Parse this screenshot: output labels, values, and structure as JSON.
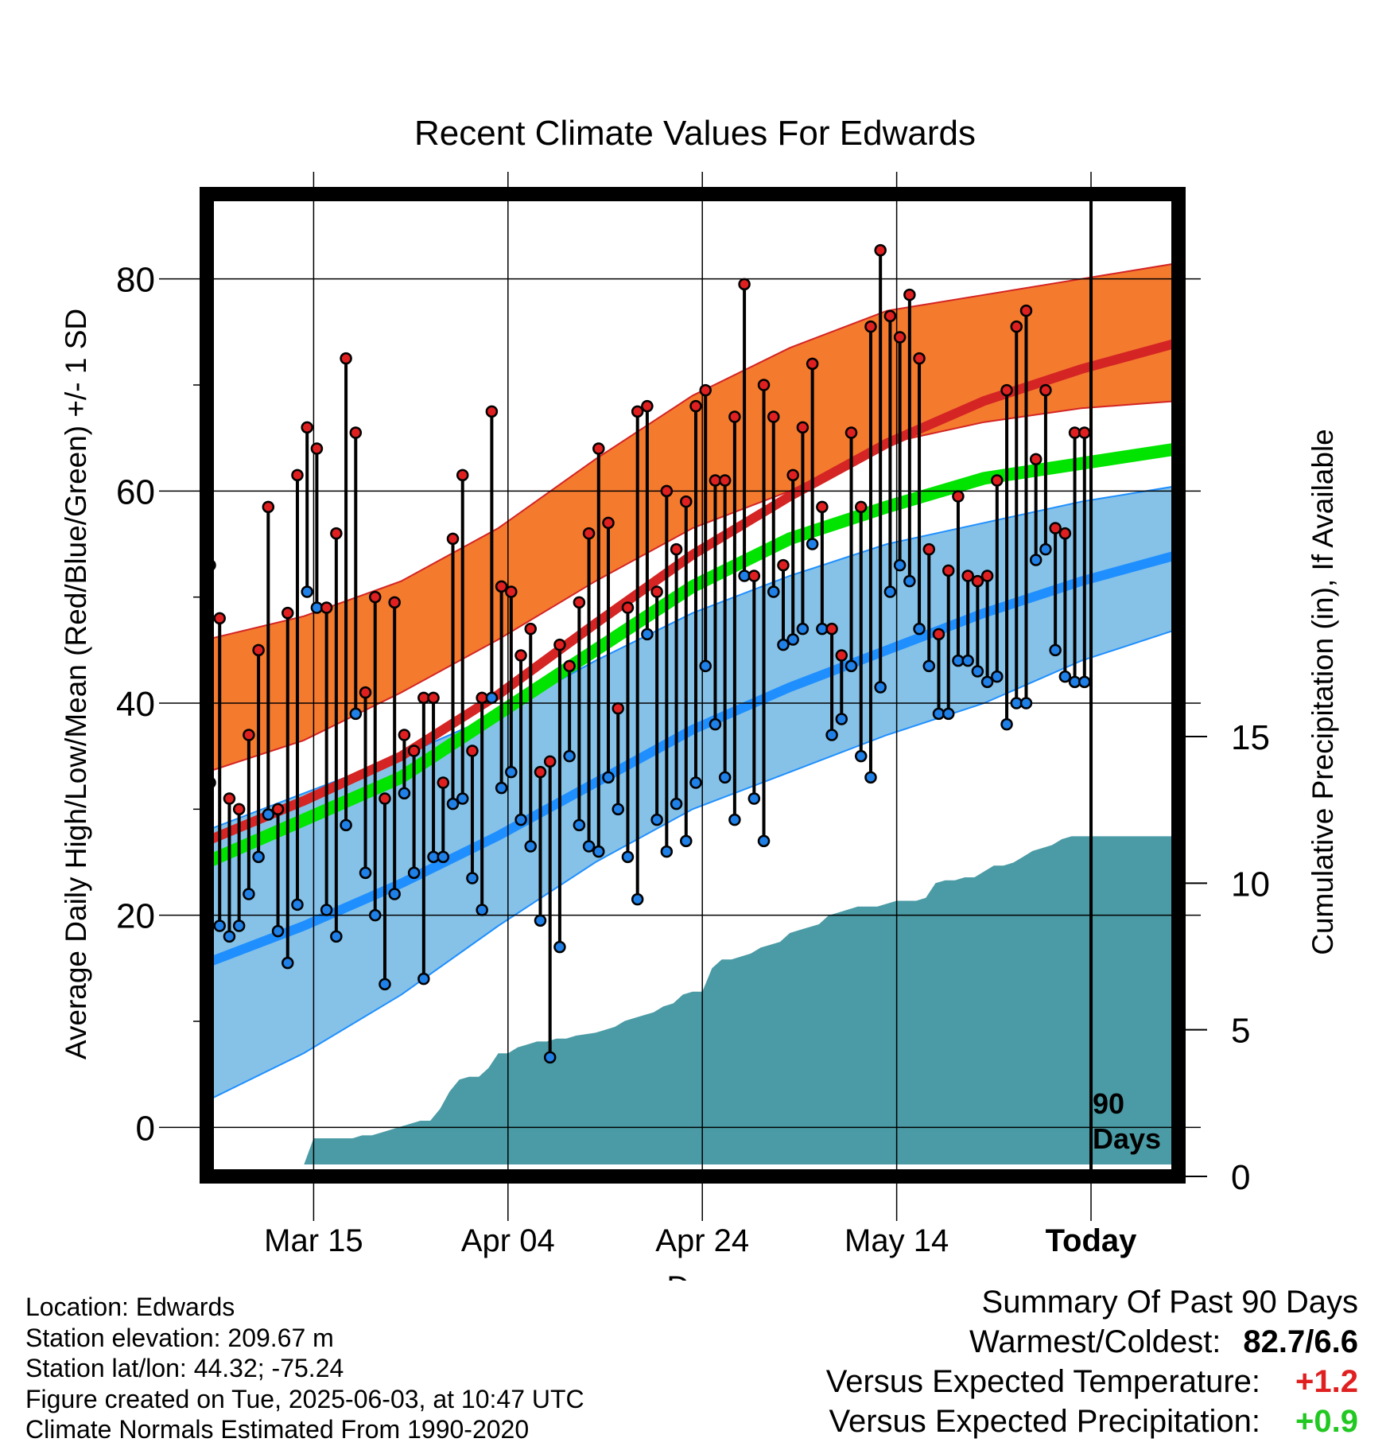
{
  "chart_data": {
    "type": "line",
    "title": "Recent Climate Values For Edwards",
    "xlabel": "Day",
    "ylabel": "Average Daily High/Low/Mean (Red/Blue/Green) +/- 1 SD",
    "y2label": "Cumulative Precipitation (in), If Available",
    "xlim": [
      0,
      100
    ],
    "ylim": [
      -3.5,
      88
    ],
    "y2lim": [
      0,
      33.5
    ],
    "x_ticks": [
      {
        "x": 11,
        "label": "Mar 15"
      },
      {
        "x": 31,
        "label": "Apr 04"
      },
      {
        "x": 51,
        "label": "Apr 24"
      },
      {
        "x": 71,
        "label": "May 14"
      },
      {
        "x": 91,
        "label": "Today"
      }
    ],
    "y_ticks": [
      0,
      20,
      40,
      60,
      80
    ],
    "y2_ticks": [
      0,
      5,
      10,
      15
    ],
    "today_x": 91,
    "today_label": "90 Days",
    "colors": {
      "high_band": "#f47a2e",
      "high_mean": "#d42424",
      "low_band": "#86c2e8",
      "low_mean": "#1f8fff",
      "mean": "#00e400",
      "precip": "#4a9ba5",
      "high_point": "#e02020",
      "low_point": "#1f80e8"
    },
    "normals": {
      "x": [
        0,
        10,
        20,
        30,
        40,
        50,
        60,
        70,
        80,
        90,
        100
      ],
      "high_mean": [
        27,
        30.8,
        35,
        40.8,
        47.5,
        54,
        59.5,
        64.5,
        68.5,
        71.5,
        74
      ],
      "high_upper": [
        46,
        48.2,
        51.5,
        56.5,
        63,
        69,
        73.5,
        77,
        78.5,
        80,
        81.5
      ],
      "high_lower": [
        33.5,
        36.5,
        41,
        46,
        51.5,
        56.5,
        60,
        64.5,
        66.5,
        67.8,
        68.5
      ],
      "mean": [
        25,
        29,
        33,
        39,
        45,
        51,
        55.5,
        58.5,
        61.2,
        62.6,
        64
      ],
      "low_mean": [
        15.5,
        19,
        23,
        27.5,
        32.5,
        37.5,
        41.5,
        45,
        48.5,
        51.5,
        54
      ],
      "low_upper": [
        28,
        31.5,
        35,
        39,
        44,
        48.5,
        52,
        55,
        57,
        59,
        60.5
      ],
      "low_lower": [
        2.5,
        7,
        12.5,
        19,
        25,
        30,
        33.5,
        37,
        40,
        44,
        47
      ]
    },
    "series": [
      {
        "name": "High",
        "x": [
          0,
          1,
          2,
          3,
          4,
          5,
          6,
          7,
          8,
          9,
          10,
          11,
          12,
          13,
          14,
          15,
          16,
          17,
          18,
          19,
          20,
          21,
          22,
          23,
          24,
          25,
          26,
          27,
          28,
          29,
          30,
          31,
          32,
          33,
          34,
          35,
          36,
          37,
          38,
          39,
          40,
          41,
          42,
          43,
          44,
          45,
          46,
          47,
          48,
          49,
          50,
          51,
          52,
          53,
          54,
          55,
          56,
          57,
          58,
          59,
          60,
          61,
          62,
          63,
          64,
          65,
          66,
          67,
          68,
          69,
          70,
          71,
          72,
          73,
          74,
          75,
          76,
          77,
          78,
          79,
          80,
          81,
          82,
          83,
          84,
          85,
          86,
          87,
          88,
          89,
          90
        ],
        "values": [
          53,
          48,
          31,
          30,
          37,
          45,
          58.5,
          30,
          48.5,
          61.5,
          66,
          64,
          49,
          56,
          72.5,
          65.5,
          41,
          50,
          31,
          49.5,
          37,
          35.5,
          40.5,
          40.5,
          32.5,
          55.5,
          61.5,
          35.5,
          40.5,
          67.5,
          51,
          50.5,
          44.5,
          47,
          33.5,
          34.5,
          45.5,
          43.5,
          49.5,
          56,
          64,
          57,
          39.5,
          49,
          67.5,
          68,
          50.5,
          60,
          54.5,
          59,
          68,
          69.5,
          61,
          61,
          67,
          79.5,
          52,
          70,
          67,
          53,
          61.5,
          66,
          72,
          58.5,
          47,
          44.5,
          65.5,
          58.5,
          75.5,
          82.7,
          76.5,
          74.5,
          78.5,
          72.5,
          54.5,
          46.5,
          52.5,
          59.5,
          52,
          51.5,
          52,
          61,
          69.5,
          75.5,
          77,
          63,
          69.5,
          56.5,
          56,
          65.5,
          65.5
        ]
      },
      {
        "name": "Low",
        "x": [
          0,
          1,
          2,
          3,
          4,
          5,
          6,
          7,
          8,
          9,
          10,
          11,
          12,
          13,
          14,
          15,
          16,
          17,
          18,
          19,
          20,
          21,
          22,
          23,
          24,
          25,
          26,
          27,
          28,
          29,
          30,
          31,
          32,
          33,
          34,
          35,
          36,
          37,
          38,
          39,
          40,
          41,
          42,
          43,
          44,
          45,
          46,
          47,
          48,
          49,
          50,
          51,
          52,
          53,
          54,
          55,
          56,
          57,
          58,
          59,
          60,
          61,
          62,
          63,
          64,
          65,
          66,
          67,
          68,
          69,
          70,
          71,
          72,
          73,
          74,
          75,
          76,
          77,
          78,
          79,
          80,
          81,
          82,
          83,
          84,
          85,
          86,
          87,
          88,
          89,
          90
        ],
        "values": [
          32.5,
          19,
          18,
          19,
          22,
          25.5,
          29.5,
          18.5,
          15.5,
          21,
          50.5,
          49,
          20.5,
          18,
          28.5,
          39,
          24,
          20,
          13.5,
          22,
          31.5,
          24,
          14,
          25.5,
          25.5,
          30.5,
          31,
          23.5,
          20.5,
          40.5,
          32,
          33.5,
          29,
          26.5,
          19.5,
          6.6,
          17,
          35,
          28.5,
          26.5,
          26,
          33,
          30,
          25.5,
          21.5,
          46.5,
          29,
          26,
          30.5,
          27,
          32.5,
          43.5,
          38,
          33,
          29,
          52,
          31,
          27,
          50.5,
          45.5,
          46,
          47,
          55,
          47,
          37,
          38.5,
          43.5,
          35,
          33,
          41.5,
          50.5,
          53,
          51.5,
          47,
          43.5,
          39,
          39,
          44,
          44,
          43,
          42,
          42.5,
          38,
          40,
          40,
          53.5,
          54.5,
          45,
          42.5,
          42,
          42
        ]
      }
    ],
    "precip": {
      "x": [
        0,
        3,
        4,
        9,
        10,
        11,
        15,
        16,
        17,
        18,
        19,
        20,
        21,
        22,
        23,
        24,
        25,
        26,
        27,
        28,
        29,
        30,
        31,
        32,
        33,
        34,
        35,
        36,
        37,
        38,
        40,
        41,
        42,
        43,
        44,
        45,
        46,
        47,
        48,
        49,
        50,
        51,
        52,
        53,
        54,
        55,
        56,
        57,
        58,
        59,
        60,
        61,
        62,
        63,
        64,
        65,
        66,
        67,
        68,
        69,
        70,
        71,
        72,
        73,
        74,
        75,
        76,
        77,
        78,
        79,
        80,
        81,
        82,
        83,
        84,
        85,
        86,
        87,
        88,
        89,
        90,
        91,
        100
      ],
      "values": [
        0.1,
        0.1,
        0.3,
        0.3,
        0.4,
        1.3,
        1.3,
        1.4,
        1.4,
        1.5,
        1.6,
        1.7,
        1.8,
        1.9,
        1.9,
        2.3,
        2.9,
        3.3,
        3.4,
        3.4,
        3.7,
        4.2,
        4.2,
        4.4,
        4.5,
        4.6,
        4.6,
        4.7,
        4.7,
        4.8,
        4.9,
        5.0,
        5.1,
        5.3,
        5.4,
        5.5,
        5.6,
        5.8,
        5.9,
        6.2,
        6.3,
        6.3,
        7.1,
        7.4,
        7.4,
        7.5,
        7.6,
        7.8,
        7.9,
        8.0,
        8.3,
        8.4,
        8.5,
        8.6,
        8.9,
        9.0,
        9.1,
        9.2,
        9.2,
        9.2,
        9.3,
        9.4,
        9.4,
        9.4,
        9.5,
        10.0,
        10.1,
        10.1,
        10.2,
        10.2,
        10.4,
        10.6,
        10.6,
        10.7,
        10.9,
        11.1,
        11.2,
        11.3,
        11.5,
        11.6,
        11.6,
        11.6,
        11.6
      ]
    }
  },
  "info": {
    "location": "Location: Edwards",
    "elevation": "Station elevation: 209.67 m",
    "latlon": "Station lat/lon: 44.32; -75.24",
    "created": "Figure created on Tue, 2025-06-03, at 10:47 UTC",
    "normals": "Climate Normals Estimated From 1990-2020"
  },
  "summary": {
    "heading": "Summary Of Past 90 Days",
    "warm_label": "Warmest/Coldest:",
    "warm_value": "82.7/6.6",
    "temp_label": "Versus Expected Temperature:",
    "temp_value": "+1.2",
    "temp_color": "#e02020",
    "precip_label": "Versus Expected Precipitation:",
    "precip_value": "+0.9",
    "precip_color": "#22c822"
  }
}
